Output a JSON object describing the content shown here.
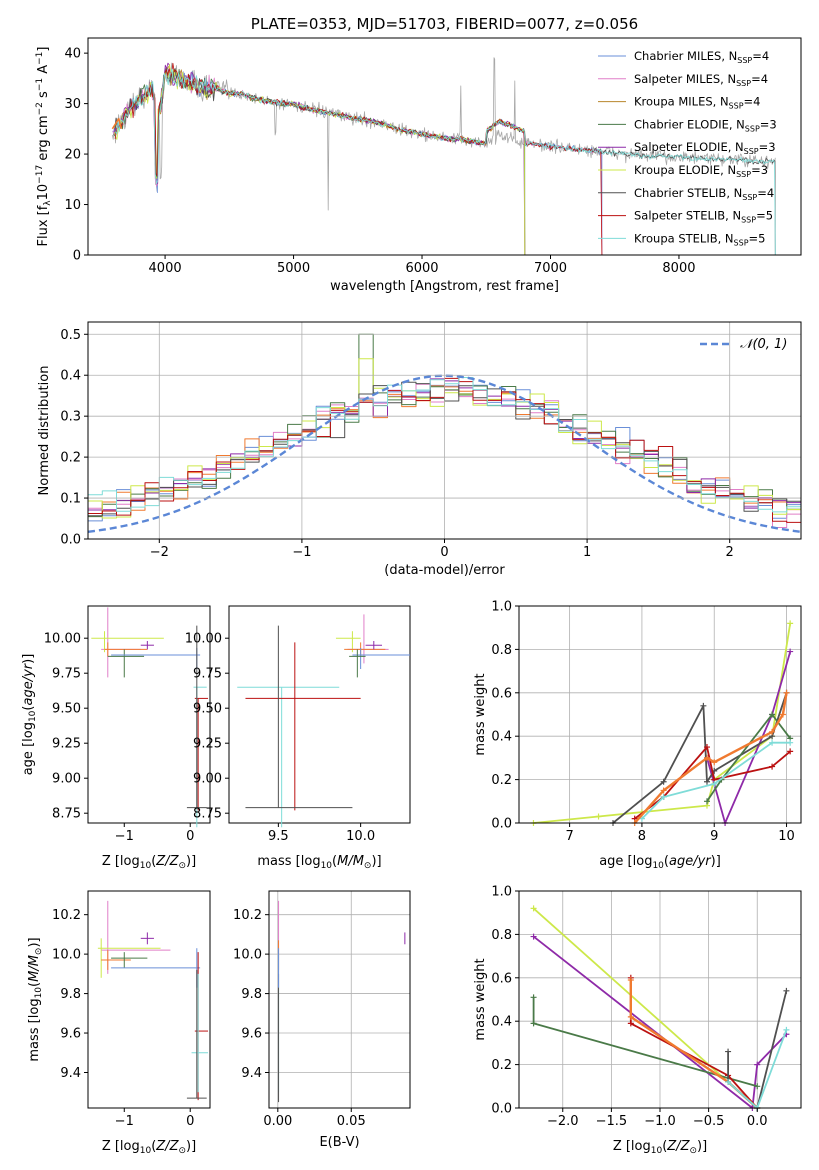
{
  "title": "PLATE=0353, MJD=51703, FIBERID=0077, z=0.056",
  "colors": {
    "Chabrier MILES": "#6a8fd8",
    "Salpeter MILES": "#e07fc8",
    "Kroupa MILES": "#b8862b",
    "Chabrier ELODIE": "#4a7a48",
    "Salpeter ELODIE": "#8e2aa8",
    "Kroupa ELODIE": "#cde84a",
    "Chabrier STELIB": "#505050",
    "Salpeter STELIB": "#bb1111",
    "Kroupa STELIB": "#7fdcd8",
    "orange_fit": "#f07a30",
    "normal_curve": "#5b87d6",
    "grid": "#b0b0b0"
  },
  "chart_data": [
    {
      "id": "spectrum",
      "type": "line",
      "title": "PLATE=0353, MJD=51703, FIBERID=0077, z=0.056",
      "xlabel": "wavelength [Angstrom, rest frame]",
      "ylabel": "Flux [f_λ 10^-17 erg cm^-2 s^-1 A^-1]",
      "xlim": [
        3400,
        8950
      ],
      "ylim": [
        0,
        43
      ],
      "xticks": [
        "4000",
        "5000",
        "6000",
        "7000",
        "8000"
      ],
      "yticks": [
        "0",
        "10",
        "20",
        "30",
        "40"
      ],
      "legend_position": "top-right",
      "grid": false,
      "legend": [
        {
          "name": "Chabrier MILES",
          "nssp": "4"
        },
        {
          "name": "Salpeter MILES",
          "nssp": "4"
        },
        {
          "name": "Kroupa MILES",
          "nssp": "4"
        },
        {
          "name": "Chabrier ELODIE",
          "nssp": "3"
        },
        {
          "name": "Salpeter ELODIE",
          "nssp": "3"
        },
        {
          "name": "Kroupa ELODIE",
          "nssp": "3"
        },
        {
          "name": "Chabrier STELIB",
          "nssp": "4"
        },
        {
          "name": "Salpeter STELIB",
          "nssp": "5"
        },
        {
          "name": "Kroupa STELIB",
          "nssp": "5"
        }
      ],
      "continuum": [
        [
          3590,
          24
        ],
        [
          3700,
          28
        ],
        [
          3800,
          31
        ],
        [
          3900,
          33
        ],
        [
          3950,
          27
        ],
        [
          4000,
          36
        ],
        [
          4100,
          35
        ],
        [
          4200,
          34
        ],
        [
          4300,
          33
        ],
        [
          4400,
          33
        ],
        [
          4500,
          32
        ],
        [
          4600,
          32
        ],
        [
          4700,
          31
        ],
        [
          4800,
          30.5
        ],
        [
          4900,
          30
        ],
        [
          5000,
          30
        ],
        [
          5100,
          29
        ],
        [
          5200,
          28.5
        ],
        [
          5300,
          28
        ],
        [
          5400,
          27.5
        ],
        [
          5500,
          27
        ],
        [
          5600,
          26.5
        ],
        [
          5700,
          26
        ],
        [
          5800,
          25
        ],
        [
          5900,
          24.5
        ],
        [
          6000,
          24
        ],
        [
          6100,
          23.5
        ],
        [
          6200,
          23
        ],
        [
          6300,
          23
        ],
        [
          6400,
          22.5
        ],
        [
          6500,
          22
        ],
        [
          6600,
          24
        ],
        [
          6700,
          23
        ],
        [
          6800,
          22
        ],
        [
          6900,
          22
        ],
        [
          7000,
          21.5
        ],
        [
          7200,
          21
        ],
        [
          7400,
          20.5
        ],
        [
          7600,
          20
        ],
        [
          7800,
          19.5
        ],
        [
          8000,
          19.5
        ],
        [
          8200,
          19
        ],
        [
          8400,
          19
        ],
        [
          8600,
          18.5
        ],
        [
          8750,
          18.5
        ]
      ]
    },
    {
      "id": "residuals",
      "type": "line",
      "xlabel": "(data-model)/error",
      "ylabel": "Normed distribution",
      "xlim": [
        -2.5,
        2.5
      ],
      "ylim": [
        0,
        0.53
      ],
      "xticks": [
        "−2",
        "−1",
        "0",
        "1",
        "2"
      ],
      "yticks": [
        "0.0",
        "0.1",
        "0.2",
        "0.3",
        "0.4",
        "0.5"
      ],
      "legend": [
        "𝒩(0, 1)"
      ],
      "legend_position": "top-right",
      "grid": true
    },
    {
      "id": "age-vs-Z",
      "type": "scatter",
      "xlabel": "Z [log10(Z/Z⊙)]",
      "ylabel": "age  [log10(age/yr)]",
      "xlim": [
        -1.55,
        0.3
      ],
      "ylim": [
        8.68,
        10.23
      ],
      "xticks": [
        "−1",
        "0"
      ],
      "yticks": [
        "8.75",
        "9.00",
        "9.25",
        "9.50",
        "9.75",
        "10.00"
      ],
      "grid": false
    },
    {
      "id": "age-vs-mass",
      "type": "scatter",
      "xlabel": "mass [log10(M/M⊙)]",
      "xlim": [
        9.2,
        10.3
      ],
      "ylim": [
        8.68,
        10.23
      ],
      "xticks": [
        "9.5",
        "10.0"
      ],
      "yticks": [
        "8.75",
        "9.00",
        "9.25",
        "9.50",
        "9.75",
        "10.00"
      ],
      "grid": false
    },
    {
      "id": "weight-vs-age",
      "type": "line",
      "xlabel": "age  [log10(age/yr)]",
      "ylabel": "mass weight",
      "xlim": [
        6.3,
        10.2
      ],
      "ylim": [
        0,
        1
      ],
      "xticks": [
        "7",
        "8",
        "9",
        "10"
      ],
      "yticks": [
        "0.0",
        "0.2",
        "0.4",
        "0.6",
        "0.8",
        "1.0"
      ],
      "grid": true,
      "series": [
        {
          "color": "Kroupa ELODIE",
          "x": [
            6.5,
            7.4,
            8.0,
            8.9,
            9.0,
            9.8,
            10.05
          ],
          "y": [
            0.0,
            0.03,
            0.05,
            0.08,
            0.2,
            0.4,
            0.92
          ]
        },
        {
          "color": "Salpeter ELODIE",
          "x": [
            8.9,
            9.15,
            9.8,
            10.05
          ],
          "y": [
            0.3,
            0.0,
            0.5,
            0.79
          ]
        },
        {
          "color": "Chabrier STELIB",
          "x": [
            7.6,
            8.3,
            8.85,
            8.9,
            9.0,
            9.8,
            10.0
          ],
          "y": [
            0.0,
            0.19,
            0.54,
            0.19,
            0.24,
            0.4,
            0.6
          ]
        },
        {
          "color": "Chabrier ELODIE",
          "x": [
            8.9,
            9.1,
            9.8,
            10.05
          ],
          "y": [
            0.1,
            0.2,
            0.5,
            0.39
          ]
        },
        {
          "color": "Salpeter STELIB",
          "x": [
            7.9,
            8.3,
            8.9,
            9.0,
            9.8,
            10.05
          ],
          "y": [
            0.02,
            0.12,
            0.35,
            0.2,
            0.26,
            0.33
          ]
        },
        {
          "color": "Kroupa STELIB",
          "x": [
            8.0,
            8.3,
            9.0,
            9.8,
            10.05
          ],
          "y": [
            0.02,
            0.12,
            0.18,
            0.37,
            0.37
          ]
        },
        {
          "color": "orange_fit",
          "x": [
            7.9,
            8.3,
            8.9,
            9.0,
            9.8,
            9.95,
            10.0
          ],
          "y": [
            0.0,
            0.15,
            0.3,
            0.28,
            0.42,
            0.5,
            0.6
          ]
        }
      ]
    },
    {
      "id": "mass-vs-Z",
      "type": "scatter",
      "xlabel": "Z [log10(Z/Z⊙)]",
      "ylabel": "mass [log10(M/M⊙)]",
      "xlim": [
        -1.55,
        0.3
      ],
      "ylim": [
        9.22,
        10.32
      ],
      "xticks": [
        "−1",
        "0"
      ],
      "yticks": [
        "9.4",
        "9.6",
        "9.8",
        "10.0",
        "10.2"
      ],
      "grid": false
    },
    {
      "id": "mass-vs-EBV",
      "type": "scatter",
      "xlabel": "E(B-V)",
      "xlim": [
        -0.006,
        0.09
      ],
      "ylim": [
        9.22,
        10.32
      ],
      "xticks": [
        "0.00",
        "0.05"
      ],
      "yticks": [
        "9.4",
        "9.6",
        "9.8",
        "10.0",
        "10.2"
      ],
      "grid": true
    },
    {
      "id": "weight-vs-Z",
      "type": "line",
      "xlabel": "Z [log10(Z/Z⊙)]",
      "ylabel": "mass weight",
      "xlim": [
        -2.45,
        0.45
      ],
      "ylim": [
        0,
        1
      ],
      "xticks": [
        "−2.0",
        "−1.5",
        "−1.0",
        "−0.5",
        "0.0"
      ],
      "yticks": [
        "0.0",
        "0.2",
        "0.4",
        "0.6",
        "0.8",
        "1.0"
      ],
      "grid": true,
      "series": [
        {
          "color": "Kroupa ELODIE",
          "x": [
            -2.3,
            0.0
          ],
          "y": [
            0.92,
            0.0
          ]
        },
        {
          "color": "Salpeter ELODIE",
          "x": [
            -2.3,
            -0.05,
            0.0,
            0.3
          ],
          "y": [
            0.79,
            0.0,
            0.2,
            0.34
          ]
        },
        {
          "color": "Chabrier ELODIE",
          "x": [
            -2.3,
            -2.3,
            0.0
          ],
          "y": [
            0.51,
            0.39,
            0.1
          ]
        },
        {
          "color": "Salpeter STELIB",
          "x": [
            -1.3,
            -1.3,
            -0.3,
            0.0
          ],
          "y": [
            0.6,
            0.39,
            0.15,
            0.0
          ]
        },
        {
          "color": "orange_fit",
          "x": [
            -1.3,
            -1.3,
            -0.3,
            0.0
          ],
          "y": [
            0.59,
            0.42,
            0.12,
            0.0
          ]
        },
        {
          "color": "Chabrier STELIB",
          "x": [
            -0.3,
            -0.3,
            0.0,
            0.3
          ],
          "y": [
            0.26,
            0.12,
            0.0,
            0.54
          ]
        },
        {
          "color": "Kroupa STELIB",
          "x": [
            -0.3,
            0.0,
            0.3
          ],
          "y": [
            0.12,
            0.0,
            0.36
          ]
        }
      ]
    }
  ]
}
